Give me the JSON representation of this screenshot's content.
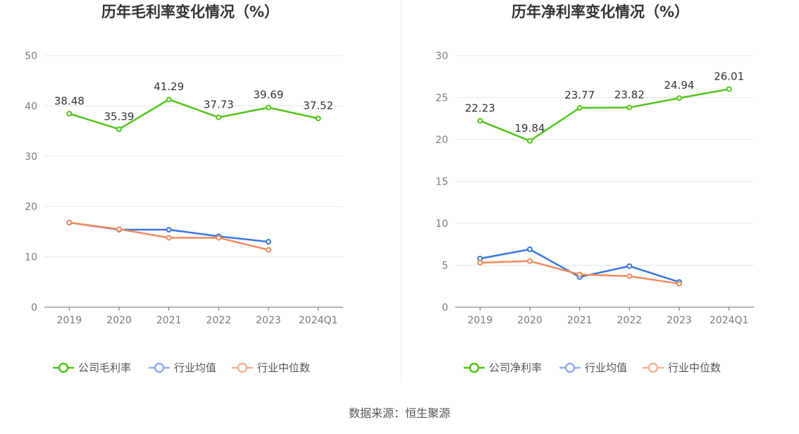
{
  "colors": {
    "company": "#52c41a",
    "industry_avg": "#3a77db",
    "industry_median": "#f08a5d"
  },
  "legend_colors": {
    "company": "#52c41a",
    "industry_avg": "#8fb1ec",
    "industry_median": "#f6b196"
  },
  "footer": {
    "source": "数据来源：恒生聚源"
  },
  "chart_data": [
    {
      "type": "line",
      "title": "历年毛利率变化情况（%）",
      "categories": [
        "2019",
        "2020",
        "2021",
        "2022",
        "2023",
        "2024Q1"
      ],
      "ylim": [
        0,
        50
      ],
      "yticks": [
        0,
        10,
        20,
        30,
        40,
        50
      ],
      "grid": true,
      "legend_position": "bottom",
      "series": [
        {
          "name": "公司毛利率",
          "key": "company",
          "values": [
            38.48,
            35.39,
            41.29,
            37.73,
            39.69,
            37.52
          ],
          "labels": [
            "38.48",
            "35.39",
            "41.29",
            "37.73",
            "39.69",
            "37.52"
          ]
        },
        {
          "name": "行业均值",
          "key": "industry_avg",
          "values": [
            16.8,
            15.4,
            15.4,
            14.1,
            13.0,
            null
          ]
        },
        {
          "name": "行业中位数",
          "key": "industry_median",
          "values": [
            16.8,
            15.5,
            13.8,
            13.8,
            11.4,
            null
          ]
        }
      ]
    },
    {
      "type": "line",
      "title": "历年净利率变化情况（%）",
      "categories": [
        "2019",
        "2020",
        "2021",
        "2022",
        "2023",
        "2024Q1"
      ],
      "ylim": [
        0,
        30
      ],
      "yticks": [
        0,
        5,
        10,
        15,
        20,
        25,
        30
      ],
      "grid": true,
      "legend_position": "bottom",
      "series": [
        {
          "name": "公司净利率",
          "key": "company",
          "values": [
            22.23,
            19.84,
            23.77,
            23.82,
            24.94,
            26.01
          ],
          "labels": [
            "22.23",
            "19.84",
            "23.77",
            "23.82",
            "24.94",
            "26.01"
          ]
        },
        {
          "name": "行业均值",
          "key": "industry_avg",
          "values": [
            5.8,
            6.9,
            3.6,
            4.9,
            3.0,
            null
          ]
        },
        {
          "name": "行业中位数",
          "key": "industry_median",
          "values": [
            5.3,
            5.5,
            3.9,
            3.7,
            2.8,
            null
          ]
        }
      ]
    }
  ]
}
